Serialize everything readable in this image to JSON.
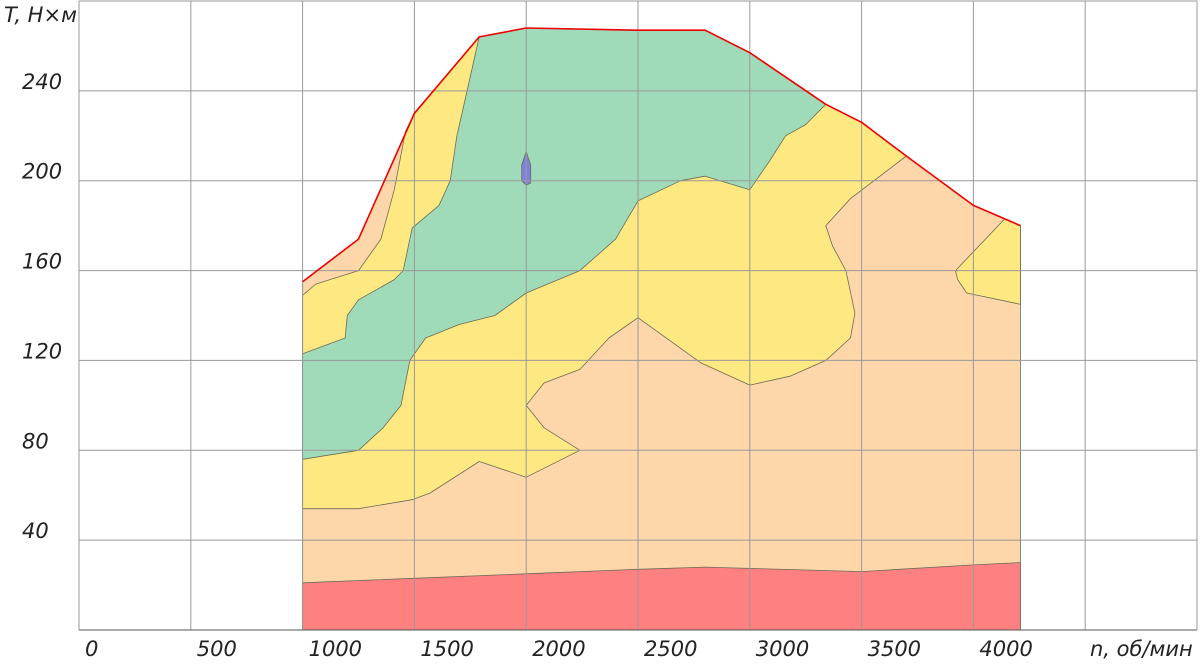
{
  "chart_data": {
    "type": "region-map",
    "xlabel": "n, об/мин",
    "ylabel": "T, Н×м",
    "xlim": [
      0,
      5000
    ],
    "ylim": [
      0,
      280
    ],
    "xticks": [
      0,
      500,
      1000,
      1500,
      2000,
      2500,
      3000,
      3500,
      4000,
      {
        "value": 4500,
        "label": null
      }
    ],
    "yticks": [
      40,
      80,
      120,
      160,
      200,
      240
    ],
    "grid": true,
    "series": [
      {
        "kind": "area",
        "color": "#fdd6aa",
        "x": [
          1000,
          1250,
          1500,
          1790,
          2000,
          2500,
          2800,
          3000,
          3340,
          3500,
          3700,
          4000,
          4210,
          4210,
          1000
        ],
        "y": [
          155,
          174,
          230,
          264,
          268,
          267,
          267,
          257,
          234,
          226,
          211,
          189,
          180,
          0,
          0
        ]
      },
      {
        "kind": "area",
        "color": "#fde882",
        "x": [
          1000,
          1250,
          1490,
          1570,
          1790,
          2000,
          2240,
          2080,
          2000,
          2080,
          2240,
          2370,
          2500,
          2780,
          3000,
          3180,
          3340,
          3450,
          3470,
          3430,
          3370,
          3340,
          3450,
          3700,
          3500,
          3340,
          3000,
          2800,
          2500,
          2000,
          1790,
          1500,
          1460,
          1410,
          1350,
          1250,
          1060,
          1000
        ],
        "y": [
          54,
          54,
          58,
          61,
          75,
          68,
          80,
          90,
          100,
          110,
          116,
          130,
          139,
          119,
          109,
          113,
          120,
          130,
          141,
          160,
          171,
          180,
          192,
          211,
          226,
          234,
          257,
          267,
          267,
          268,
          264,
          230,
          222,
          196,
          174,
          160,
          154,
          149
        ]
      },
      {
        "kind": "area",
        "color": "#fde882",
        "x": [
          3920,
          4140,
          4210,
          4210,
          3970,
          3930
        ],
        "y": [
          160,
          183,
          180,
          145,
          150,
          156
        ]
      },
      {
        "kind": "area",
        "color": "#9fdbb8",
        "x": [
          1000,
          1250,
          1360,
          1440,
          1480,
          1550,
          1700,
          1860,
          2000,
          2240,
          2400,
          2500,
          2690,
          2800,
          3000,
          3090,
          3160,
          3250,
          3340,
          3000,
          2800,
          2500,
          2000,
          1790,
          1740,
          1690,
          1660,
          1610,
          1490,
          1450,
          1410,
          1250,
          1200,
          1190,
          1000
        ],
        "y": [
          76,
          80,
          90,
          100,
          120,
          130,
          136,
          140,
          150,
          160,
          174,
          191,
          200,
          202,
          196,
          209,
          220,
          225,
          234,
          257,
          267,
          267,
          268,
          264,
          242,
          220,
          200,
          189,
          179,
          160,
          156,
          147,
          140,
          130,
          123
        ]
      },
      {
        "kind": "area",
        "color": "#8080e0",
        "x": [
          2000,
          2020,
          2020,
          2000,
          1980,
          1980
        ],
        "y": [
          213,
          207,
          199,
          198,
          200,
          207
        ]
      },
      {
        "kind": "area",
        "color": "#ff8080",
        "x": [
          1000,
          1500,
          2000,
          2500,
          2800,
          3500,
          4000,
          4210,
          4210,
          1000
        ],
        "y": [
          21,
          23,
          25,
          27,
          28,
          26,
          29,
          30,
          0,
          0
        ]
      },
      {
        "kind": "line",
        "color": "#ee0000",
        "x": [
          1000,
          1250,
          1500,
          1790,
          2000,
          2500,
          2800,
          3000,
          3340,
          3500,
          3700,
          4000,
          4210
        ],
        "y": [
          155,
          174,
          230,
          264,
          268,
          267,
          267,
          257,
          234,
          226,
          211,
          189,
          180
        ]
      }
    ]
  }
}
